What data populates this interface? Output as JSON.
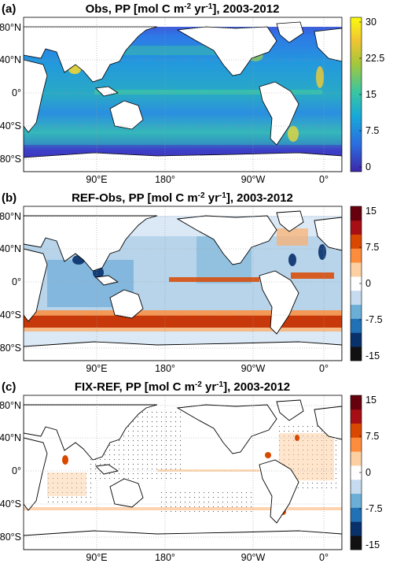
{
  "panels": [
    {
      "label": "(a)",
      "title_pre": "Obs, PP [mol C m",
      "title_sup1": "-2",
      "title_mid": " yr",
      "title_sup2": "-1",
      "title_post": "], 2003-2012",
      "colorbar_ticks": [
        "30",
        "22.5",
        "15",
        "7.5",
        "0"
      ],
      "colorbar_type": "sequential",
      "clim": [
        0,
        30
      ]
    },
    {
      "label": "(b)",
      "title_pre": "REF-Obs, PP [mol C m",
      "title_sup1": "-2",
      "title_mid": " yr",
      "title_sup2": "-1",
      "title_post": "], 2003-2012",
      "colorbar_ticks": [
        "15",
        "7.5",
        "0",
        "-7.5",
        "-15"
      ],
      "colorbar_type": "diverging",
      "clim": [
        -15,
        15
      ]
    },
    {
      "label": "(c)",
      "title_pre": "FIX-REF, PP [mol C m",
      "title_sup1": "-2",
      "title_mid": " yr",
      "title_sup2": "-1",
      "title_post": "], 2003-2012",
      "colorbar_ticks": [
        "15",
        "7.5",
        "0",
        "-7.5",
        "-15"
      ],
      "colorbar_type": "diverging",
      "clim": [
        -15,
        15
      ]
    }
  ],
  "lat_ticks": [
    "80°N",
    "40°N",
    "0°",
    "40°S",
    "80°S"
  ],
  "lon_ticks": [
    "90°E",
    "180°",
    "90°W",
    "0°"
  ],
  "colors": {
    "seq": [
      "#3d26a8",
      "#2a6fe0",
      "#17a9d8",
      "#3bc6a0",
      "#a5c73a",
      "#f0c532",
      "#f9fb0e"
    ],
    "div": [
      "#111111",
      "#08306b",
      "#2171b5",
      "#6baed6",
      "#c6dbef",
      "#ffffff",
      "#fdd0a2",
      "#fd8d3c",
      "#d94801",
      "#a50f15",
      "#67000d"
    ]
  }
}
